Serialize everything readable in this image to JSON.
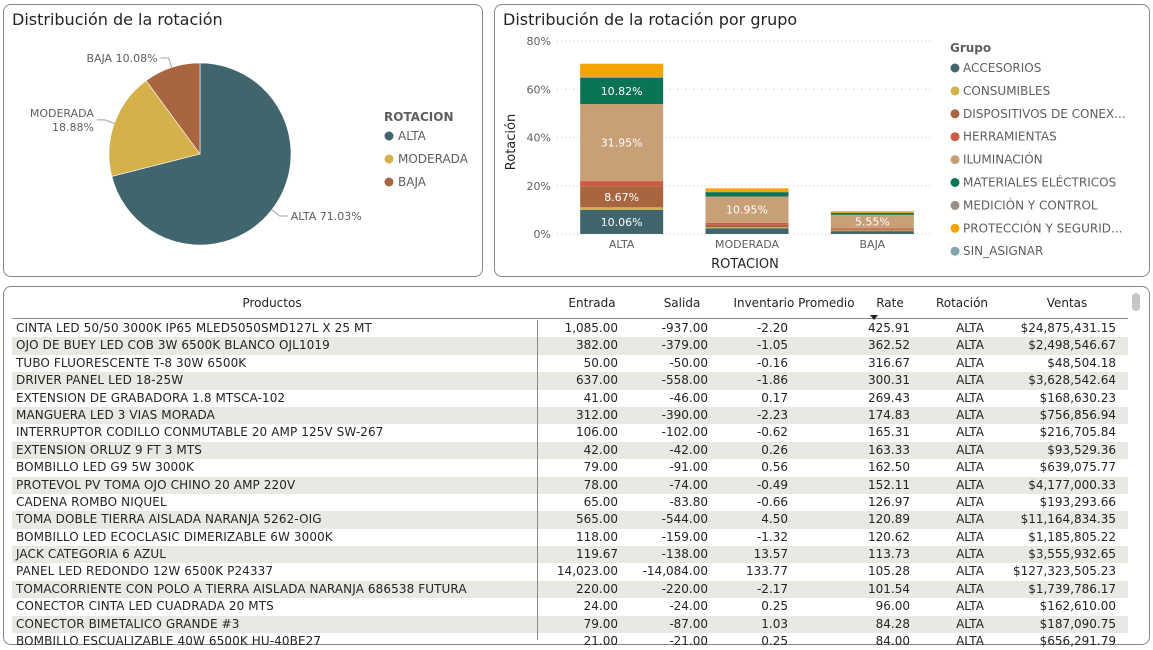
{
  "pie_card": {
    "title": "Distribución de la rotación",
    "legend_title": "ROTACION"
  },
  "bar_card": {
    "title": "Distribución de la rotación por grupo",
    "legend_title": "Grupo"
  },
  "chart_data": [
    {
      "type": "pie",
      "title": "Distribución de la rotación",
      "legend_title": "ROTACION",
      "legend_position": "right",
      "slices": [
        {
          "label": "ALTA",
          "value": 71.03,
          "label_text": "ALTA 71.03%",
          "color": "#41656c"
        },
        {
          "label": "MODERADA",
          "value": 18.88,
          "label_text": "MODERADA 18.88%",
          "label_line1": "MODERADA",
          "label_line2": "18.88%",
          "color": "#d5b14c"
        },
        {
          "label": "BAJA",
          "value": 10.08,
          "label_text": "BAJA 10.08%",
          "color": "#a9653f"
        }
      ]
    },
    {
      "type": "bar",
      "stacked": true,
      "title": "Distribución de la rotación por grupo",
      "xlabel": "ROTACION",
      "ylabel": "Rotación",
      "ylim": [
        0,
        80
      ],
      "yticks": [
        "0%",
        "20%",
        "40%",
        "60%",
        "80%"
      ],
      "ytick_values": [
        0,
        20,
        40,
        60,
        80
      ],
      "grid": true,
      "legend_title": "Grupo",
      "legend_position": "right",
      "categories": [
        "ALTA",
        "MODERADA",
        "BAJA"
      ],
      "series": [
        {
          "name": "ACCESORIOS",
          "color": "#41656c",
          "values": [
            10.06,
            2.4,
            1.2
          ],
          "labels": [
            "10.06%",
            "",
            ""
          ]
        },
        {
          "name": "CONSUMIBLES",
          "color": "#d5b14c",
          "values": [
            1.0,
            0.4,
            0.3
          ],
          "labels": [
            "",
            "",
            ""
          ]
        },
        {
          "name": "DISPOSITIVOS DE CONEX...",
          "color": "#a9653f",
          "values": [
            8.67,
            1.0,
            0.5
          ],
          "labels": [
            "8.67%",
            "",
            ""
          ]
        },
        {
          "name": "HERRAMIENTAS",
          "color": "#cc5a44",
          "values": [
            2.2,
            0.8,
            0.4
          ],
          "labels": [
            "",
            "",
            ""
          ]
        },
        {
          "name": "ILUMINACIÓN",
          "color": "#c89f77",
          "values": [
            31.95,
            10.95,
            5.55
          ],
          "labels": [
            "31.95%",
            "10.95%",
            "5.55%"
          ]
        },
        {
          "name": "MATERIALES ELÉCTRICOS",
          "color": "#0a7454",
          "values": [
            10.82,
            1.8,
            0.8
          ],
          "labels": [
            "10.82%",
            "",
            ""
          ]
        },
        {
          "name": "MEDICIÓN Y CONTROL",
          "color": "#9c8f85",
          "values": [
            0.5,
            0.2,
            0.1
          ],
          "labels": [
            "",
            "",
            ""
          ]
        },
        {
          "name": "PROTECCIÓN Y SEGURID...",
          "color": "#f5a300",
          "values": [
            5.3,
            1.4,
            0.6
          ],
          "labels": [
            "",
            "",
            ""
          ]
        },
        {
          "name": "SIN_ASIGNAR",
          "color": "#83a5b0",
          "values": [
            0.1,
            0.0,
            0.0
          ],
          "labels": [
            "",
            "",
            ""
          ]
        }
      ]
    }
  ],
  "table": {
    "columns": [
      "Productos",
      "Entrada",
      "Salida",
      "Inventario Promedio",
      "Rate",
      "Rotación",
      "Ventas"
    ],
    "sorted_column": "Rate",
    "rows": [
      [
        "CINTA LED 50/50 3000K IP65 MLED5050SMD127L X 25 MT",
        "1,085.00",
        "-937.00",
        "-2.20",
        "425.91",
        "ALTA",
        "$24,875,431.15"
      ],
      [
        "OJO DE BUEY LED COB 3W 6500K BLANCO OJL1019",
        "382.00",
        "-379.00",
        "-1.05",
        "362.52",
        "ALTA",
        "$2,498,546.67"
      ],
      [
        "TUBO FLUORESCENTE T-8 30W 6500K",
        "50.00",
        "-50.00",
        "-0.16",
        "316.67",
        "ALTA",
        "$48,504.18"
      ],
      [
        "DRIVER PANEL LED 18-25W",
        "637.00",
        "-558.00",
        "-1.86",
        "300.31",
        "ALTA",
        "$3,628,542.64"
      ],
      [
        "EXTENSION DE GRABADORA 1.8 MTSCA-102",
        "41.00",
        "-46.00",
        "0.17",
        "269.43",
        "ALTA",
        "$168,630.23"
      ],
      [
        "MANGUERA LED 3 VIAS MORADA",
        "312.00",
        "-390.00",
        "-2.23",
        "174.83",
        "ALTA",
        "$756,856.94"
      ],
      [
        "INTERRUPTOR CODILLO CONMUTABLE 20 AMP 125V SW-267",
        "106.00",
        "-102.00",
        "-0.62",
        "165.31",
        "ALTA",
        "$216,705.84"
      ],
      [
        "EXTENSION ORLUZ 9 FT 3 MTS",
        "42.00",
        "-42.00",
        "0.26",
        "163.33",
        "ALTA",
        "$93,529.36"
      ],
      [
        "BOMBILLO LED G9 5W 3000K",
        "79.00",
        "-91.00",
        "0.56",
        "162.50",
        "ALTA",
        "$639,075.77"
      ],
      [
        "PROTEVOL PV TOMA OJO CHINO 20 AMP 220V",
        "78.00",
        "-74.00",
        "-0.49",
        "152.11",
        "ALTA",
        "$4,177,000.33"
      ],
      [
        "CADENA ROMBO NIQUEL",
        "65.00",
        "-83.80",
        "-0.66",
        "126.97",
        "ALTA",
        "$193,293.66"
      ],
      [
        "TOMA DOBLE TIERRA AISLADA NARANJA 5262-OIG",
        "565.00",
        "-544.00",
        "4.50",
        "120.89",
        "ALTA",
        "$11,164,834.35"
      ],
      [
        "BOMBILLO LED ECOCLASIC DIMERIZABLE 6W 3000K",
        "118.00",
        "-159.00",
        "-1.32",
        "120.62",
        "ALTA",
        "$1,185,805.22"
      ],
      [
        "JACK CATEGORIA 6 AZUL",
        "119.67",
        "-138.00",
        "13.57",
        "113.73",
        "ALTA",
        "$3,555,932.65"
      ],
      [
        "PANEL LED REDONDO 12W 6500K P24337",
        "14,023.00",
        "-14,084.00",
        "133.77",
        "105.28",
        "ALTA",
        "$127,323,505.23"
      ],
      [
        "TOMACORRIENTE CON POLO A TIERRA AISLADA NARANJA 686538 FUTURA",
        "220.00",
        "-220.00",
        "-2.17",
        "101.54",
        "ALTA",
        "$1,739,786.17"
      ],
      [
        "CONECTOR CINTA LED CUADRADA 20 MTS",
        "24.00",
        "-24.00",
        "0.25",
        "96.00",
        "ALTA",
        "$162,610.00"
      ],
      [
        "CONECTOR BIMETALICO GRANDE #3",
        "79.00",
        "-87.00",
        "1.03",
        "84.28",
        "ALTA",
        "$187,090.75"
      ],
      [
        "BOMBILLO ESCUALIZABLE 40W 6500K HU-40BE27",
        "21.00",
        "-21.00",
        "0.25",
        "84.00",
        "ALTA",
        "$656,291.79"
      ]
    ]
  }
}
